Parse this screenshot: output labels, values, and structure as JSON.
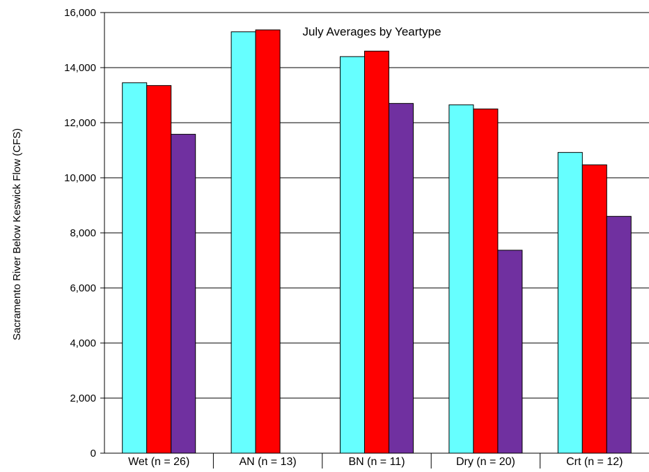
{
  "chart_data": {
    "type": "bar",
    "title": "July Averages by Yeartype",
    "xlabel": "",
    "ylabel": "Sacramento River Below Keswick Flow (CFS)",
    "ylim": [
      0,
      16000
    ],
    "yticks": [
      0,
      2000,
      4000,
      6000,
      8000,
      10000,
      12000,
      14000,
      16000
    ],
    "ytick_labels": [
      "0",
      "2,000",
      "4,000",
      "6,000",
      "8,000",
      "10,000",
      "12,000",
      "14,000",
      "16,000"
    ],
    "categories": [
      "Wet (n = 26)",
      "AN  (n = 13)",
      "BN  (n = 11)",
      "Dry  (n = 20)",
      "Crt  (n = 12)"
    ],
    "grid": true,
    "legend": "none",
    "series": [
      {
        "color": "#66ffff",
        "values": [
          13450,
          15300,
          14400,
          12650,
          10920
        ]
      },
      {
        "color": "#ff0000",
        "values": [
          13350,
          15370,
          14600,
          12500,
          10470
        ]
      },
      {
        "color": "#7030a0",
        "values": [
          11580,
          null,
          12700,
          7370,
          8600
        ]
      }
    ]
  }
}
